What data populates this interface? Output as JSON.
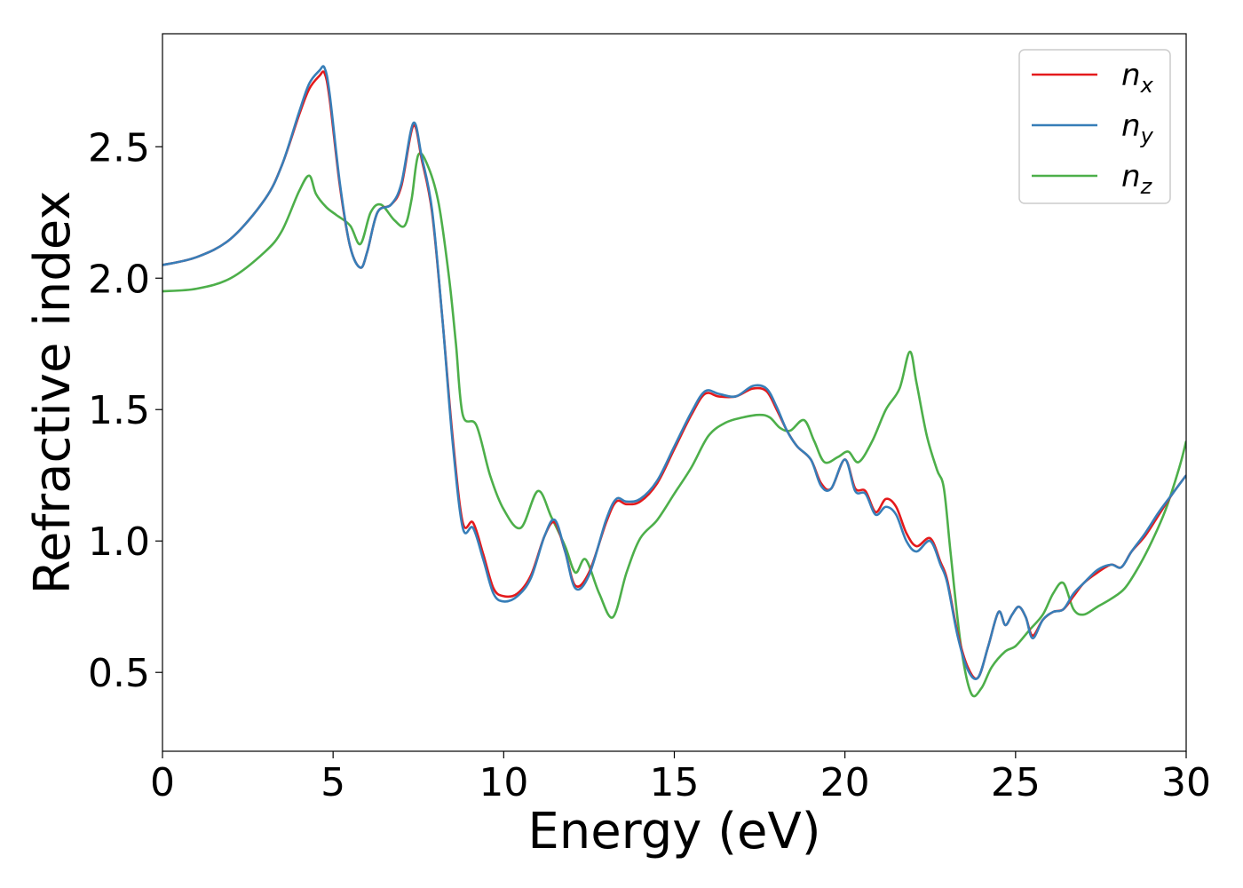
{
  "chart_data": {
    "type": "line",
    "title": "",
    "xlabel": "Energy (eV)",
    "ylabel": "Refractive index",
    "xlim": [
      0,
      30
    ],
    "ylim": [
      0.2,
      2.93
    ],
    "xticks": [
      "0",
      "5",
      "10",
      "15",
      "20",
      "25",
      "30"
    ],
    "yticks": [
      "0.5",
      "1.0",
      "1.5",
      "2.0",
      "2.5"
    ],
    "grid": false,
    "legend_position": "top-right",
    "series": [
      {
        "name": "n",
        "subscript": "x",
        "color": "#e41a1c",
        "x": [
          0,
          1,
          2,
          3,
          3.5,
          4,
          4.3,
          4.6,
          4.75,
          4.9,
          5.2,
          5.5,
          5.8,
          6,
          6.3,
          6.7,
          7,
          7.35,
          7.6,
          7.9,
          8.2,
          8.5,
          8.8,
          9.1,
          9.4,
          9.7,
          10,
          10.4,
          10.8,
          11.2,
          11.5,
          11.8,
          12.1,
          12.5,
          13,
          13.3,
          13.6,
          14,
          14.5,
          15,
          15.5,
          15.9,
          16.3,
          16.8,
          17.3,
          17.7,
          18,
          18.3,
          18.6,
          19,
          19.3,
          19.6,
          20,
          20.3,
          20.6,
          20.9,
          21.2,
          21.5,
          21.8,
          22.1,
          22.5,
          22.8,
          23,
          23.3,
          23.6,
          23.9,
          24.2,
          24.5,
          24.7,
          24.9,
          25.1,
          25.3,
          25.5,
          25.8,
          26.1,
          26.4,
          26.7,
          27,
          27.4,
          27.8,
          28.1,
          28.4,
          28.8,
          29.2,
          29.6,
          30
        ],
        "y": [
          2.05,
          2.08,
          2.15,
          2.3,
          2.43,
          2.62,
          2.72,
          2.77,
          2.78,
          2.68,
          2.35,
          2.12,
          2.04,
          2.1,
          2.25,
          2.28,
          2.35,
          2.58,
          2.45,
          2.25,
          1.85,
          1.4,
          1.07,
          1.07,
          0.95,
          0.82,
          0.79,
          0.8,
          0.87,
          1.02,
          1.07,
          0.96,
          0.83,
          0.88,
          1.07,
          1.15,
          1.14,
          1.15,
          1.22,
          1.35,
          1.48,
          1.56,
          1.55,
          1.55,
          1.58,
          1.57,
          1.5,
          1.42,
          1.36,
          1.31,
          1.22,
          1.2,
          1.31,
          1.2,
          1.19,
          1.11,
          1.16,
          1.13,
          1.03,
          0.98,
          1.01,
          0.92,
          0.85,
          0.65,
          0.52,
          0.48,
          0.6,
          0.73,
          0.68,
          0.72,
          0.75,
          0.71,
          0.64,
          0.7,
          0.73,
          0.74,
          0.79,
          0.84,
          0.88,
          0.91,
          0.9,
          0.96,
          1.02,
          1.1,
          1.18,
          1.25
        ]
      },
      {
        "name": "n",
        "subscript": "y",
        "color": "#377eb8",
        "x": [
          0,
          1,
          2,
          3,
          3.5,
          4,
          4.3,
          4.6,
          4.75,
          4.9,
          5.2,
          5.5,
          5.8,
          6,
          6.3,
          6.7,
          7,
          7.35,
          7.6,
          7.9,
          8.2,
          8.5,
          8.8,
          9.1,
          9.4,
          9.7,
          10,
          10.4,
          10.8,
          11.2,
          11.5,
          11.8,
          12.1,
          12.5,
          13,
          13.3,
          13.6,
          14,
          14.5,
          15,
          15.5,
          15.9,
          16.3,
          16.8,
          17.3,
          17.7,
          18,
          18.3,
          18.6,
          19,
          19.3,
          19.6,
          20,
          20.3,
          20.6,
          20.9,
          21.2,
          21.5,
          21.8,
          22.1,
          22.5,
          22.8,
          23,
          23.3,
          23.6,
          23.9,
          24.2,
          24.5,
          24.7,
          24.9,
          25.1,
          25.3,
          25.5,
          25.8,
          26.1,
          26.4,
          26.7,
          27,
          27.4,
          27.8,
          28.1,
          28.4,
          28.8,
          29.2,
          29.6,
          30
        ],
        "y": [
          2.05,
          2.08,
          2.15,
          2.3,
          2.43,
          2.63,
          2.74,
          2.79,
          2.8,
          2.7,
          2.36,
          2.12,
          2.04,
          2.1,
          2.25,
          2.28,
          2.36,
          2.59,
          2.46,
          2.26,
          1.85,
          1.38,
          1.05,
          1.05,
          0.93,
          0.8,
          0.77,
          0.79,
          0.86,
          1.02,
          1.08,
          0.96,
          0.82,
          0.87,
          1.08,
          1.16,
          1.15,
          1.16,
          1.23,
          1.36,
          1.49,
          1.57,
          1.56,
          1.55,
          1.59,
          1.58,
          1.51,
          1.42,
          1.36,
          1.31,
          1.21,
          1.2,
          1.31,
          1.19,
          1.18,
          1.1,
          1.13,
          1.1,
          1.0,
          0.96,
          1.0,
          0.91,
          0.84,
          0.64,
          0.51,
          0.48,
          0.6,
          0.73,
          0.68,
          0.72,
          0.75,
          0.71,
          0.63,
          0.7,
          0.73,
          0.74,
          0.8,
          0.84,
          0.89,
          0.91,
          0.9,
          0.96,
          1.03,
          1.11,
          1.18,
          1.25
        ]
      },
      {
        "name": "n",
        "subscript": "z",
        "color": "#4daf4a",
        "x": [
          0,
          1,
          2,
          3,
          3.5,
          4,
          4.3,
          4.5,
          4.8,
          5.1,
          5.5,
          5.8,
          6.1,
          6.4,
          6.8,
          7.1,
          7.3,
          7.5,
          7.8,
          8.1,
          8.4,
          8.6,
          8.8,
          9.2,
          9.6,
          10,
          10.5,
          11,
          11.4,
          11.8,
          12.1,
          12.4,
          12.8,
          13.2,
          13.6,
          14,
          14.5,
          15,
          15.5,
          16,
          16.5,
          17,
          17.5,
          17.8,
          18.1,
          18.4,
          18.8,
          19.1,
          19.4,
          19.8,
          20.1,
          20.4,
          20.8,
          21.2,
          21.6,
          21.9,
          22.1,
          22.4,
          22.7,
          22.9,
          23.1,
          23.4,
          23.7,
          24,
          24.3,
          24.7,
          25,
          25.4,
          25.8,
          26.1,
          26.4,
          26.7,
          27,
          27.4,
          27.8,
          28.2,
          28.6,
          29,
          29.4,
          29.8,
          30
        ],
        "y": [
          1.95,
          1.96,
          2.0,
          2.1,
          2.18,
          2.33,
          2.39,
          2.32,
          2.27,
          2.24,
          2.2,
          2.13,
          2.25,
          2.28,
          2.22,
          2.2,
          2.3,
          2.47,
          2.42,
          2.28,
          2.0,
          1.75,
          1.48,
          1.44,
          1.25,
          1.12,
          1.05,
          1.19,
          1.09,
          0.98,
          0.88,
          0.93,
          0.8,
          0.71,
          0.88,
          1.01,
          1.08,
          1.18,
          1.28,
          1.4,
          1.45,
          1.47,
          1.48,
          1.47,
          1.43,
          1.42,
          1.46,
          1.38,
          1.3,
          1.32,
          1.34,
          1.3,
          1.38,
          1.5,
          1.58,
          1.72,
          1.6,
          1.4,
          1.27,
          1.2,
          0.95,
          0.6,
          0.42,
          0.44,
          0.52,
          0.58,
          0.6,
          0.66,
          0.72,
          0.8,
          0.84,
          0.74,
          0.72,
          0.75,
          0.78,
          0.82,
          0.9,
          1.0,
          1.12,
          1.28,
          1.38
        ]
      }
    ]
  }
}
